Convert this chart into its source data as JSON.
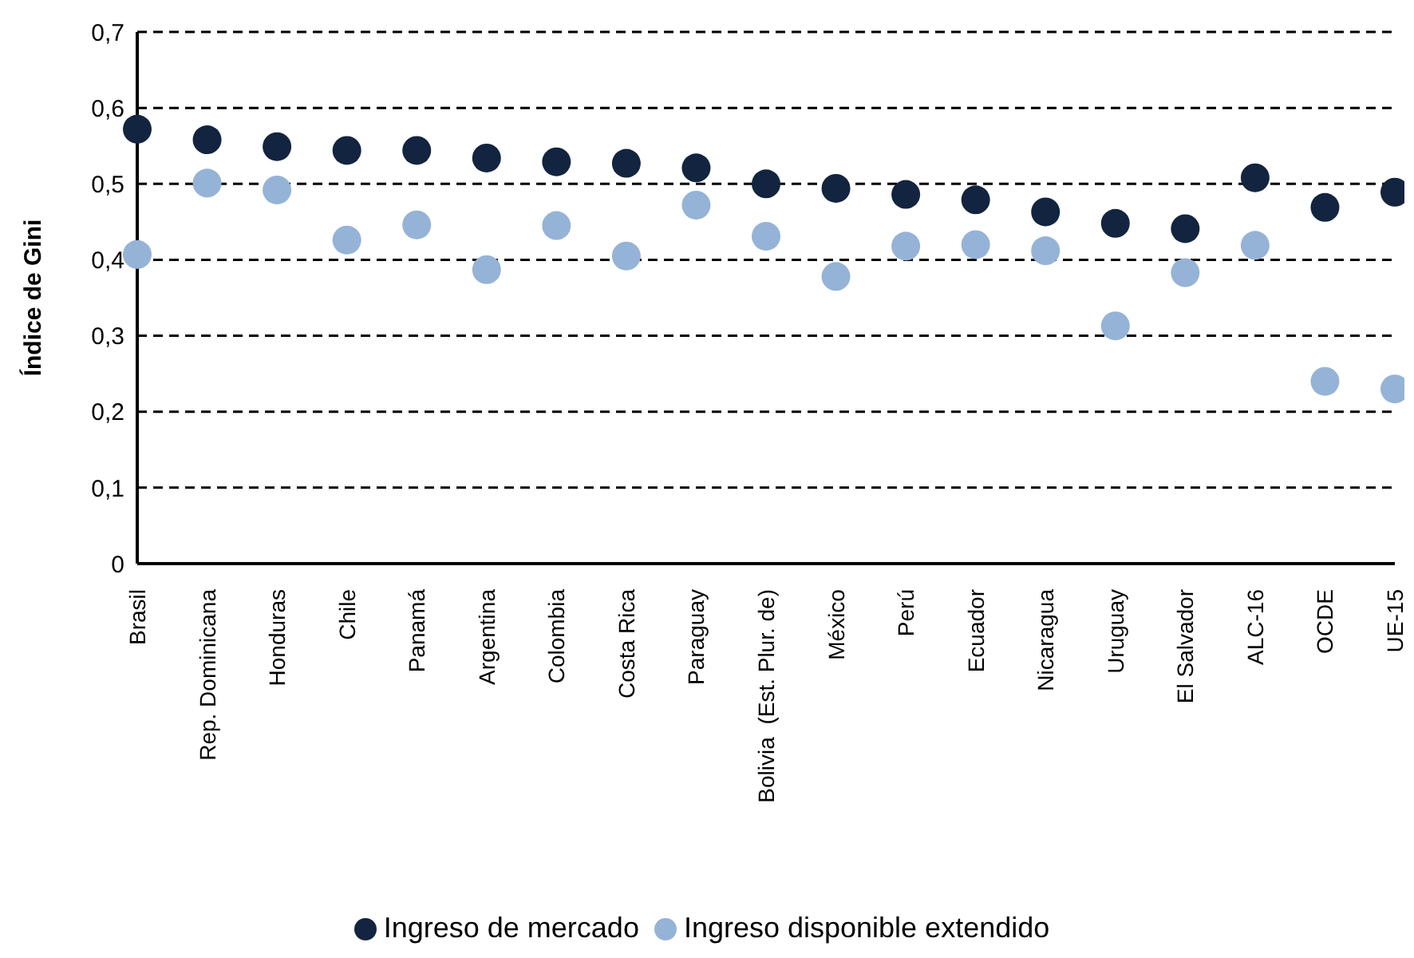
{
  "chart_data": {
    "type": "scatter",
    "ylabel": "Índice de Gini",
    "categories": [
      "Brasil",
      "Rep. Dominicana",
      "Honduras",
      "Chile",
      "Panamá",
      "Argentina",
      "Colombia",
      "Costa Rica",
      "Paraguay",
      "Bolivia  (Est. Plur. de)",
      "México",
      "Perú",
      "Ecuador",
      "Nicaragua",
      "Uruguay",
      "El Salvador",
      "ALC-16",
      "OCDE",
      "UE-15"
    ],
    "series": [
      {
        "name": "Ingreso de mercado",
        "color": "#12243f",
        "values": [
          0.572,
          0.558,
          0.549,
          0.544,
          0.544,
          0.534,
          0.529,
          0.527,
          0.521,
          0.5,
          0.494,
          0.486,
          0.479,
          0.463,
          0.448,
          0.441,
          0.508,
          0.469,
          0.489
        ]
      },
      {
        "name": "Ingreso disponible extendido",
        "color": "#95b3d7",
        "values": [
          0.407,
          0.501,
          0.492,
          0.426,
          0.446,
          0.387,
          0.445,
          0.405,
          0.472,
          0.431,
          0.378,
          0.418,
          0.42,
          0.412,
          0.313,
          0.383,
          0.419,
          0.24,
          0.23
        ]
      }
    ],
    "ylim": [
      0,
      0.7
    ],
    "yticks": [
      {
        "value": 0,
        "label": "0"
      },
      {
        "value": 0.1,
        "label": "0,1"
      },
      {
        "value": 0.2,
        "label": "0,2"
      },
      {
        "value": 0.3,
        "label": "0,3"
      },
      {
        "value": 0.4,
        "label": "0,4"
      },
      {
        "value": 0.5,
        "label": "0,5"
      },
      {
        "value": 0.6,
        "label": "0,6"
      },
      {
        "value": 0.7,
        "label": "0,7"
      }
    ],
    "grid": "y",
    "legend": "bottom",
    "marker": "circle"
  }
}
